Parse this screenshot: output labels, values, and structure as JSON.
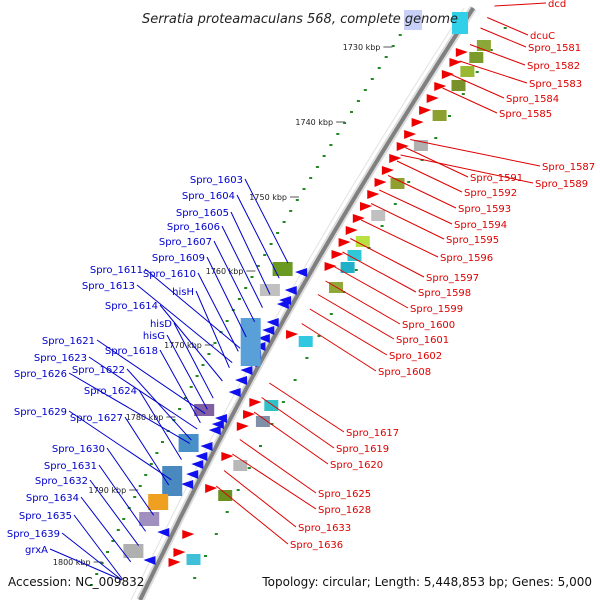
{
  "title": "Serratia proteamaculans 568, complete genome",
  "footer": {
    "accession": "Accession: NC_009832",
    "topology": "Topology: circular; Length: 5,448,853 bp; Genes: 5,000"
  },
  "colors": {
    "backbone": "#808080",
    "minus_strand_label": "#0000cc",
    "plus_strand_label": "#dd0000",
    "tick": "#228822",
    "plus_arrow": "#ee0000",
    "minus_arrow": "#1010ee"
  },
  "kbp_labels": [
    "1730 kbp",
    "1740 kbp",
    "1750 kbp",
    "1760 kbp",
    "1770 kbp",
    "1780 kbp",
    "1790 kbp",
    "1800 kbp"
  ],
  "plus_strand_genes": [
    "dcd",
    "dcuC",
    "Spro_1581",
    "Spro_1582",
    "Spro_1583",
    "Spro_1584",
    "Spro_1585",
    "Spro_1587",
    "Spro_1589",
    "Spro_1591",
    "Spro_1592",
    "Spro_1593",
    "Spro_1594",
    "Spro_1595",
    "Spro_1596",
    "Spro_1597",
    "Spro_1598",
    "Spro_1599",
    "Spro_1600",
    "Spro_1601",
    "Spro_1602",
    "Spro_1608",
    "Spro_1617",
    "Spro_1619",
    "Spro_1620",
    "Spro_1625",
    "Spro_1628",
    "Spro_1633",
    "Spro_1636"
  ],
  "minus_strand_genes": [
    "Spro_1603",
    "Spro_1604",
    "Spro_1605",
    "Spro_1606",
    "Spro_1607",
    "Spro_1609",
    "Spro_1611",
    "Spro_1610",
    "Spro_1613",
    "hisH",
    "Spro_1614",
    "hisD",
    "hisG",
    "Spro_1621",
    "Spro_1618",
    "Spro_1623",
    "Spro_1622",
    "Spro_1626",
    "Spro_1624",
    "Spro_1629",
    "Spro_1627",
    "Spro_1630",
    "Spro_1631",
    "Spro_1632",
    "Spro_1634",
    "Spro_1635",
    "Spro_1639",
    "grxA"
  ]
}
